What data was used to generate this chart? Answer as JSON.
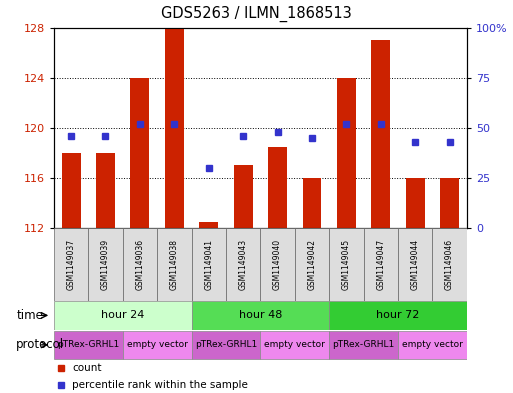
{
  "title": "GDS5263 / ILMN_1868513",
  "samples": [
    "GSM1149037",
    "GSM1149039",
    "GSM1149036",
    "GSM1149038",
    "GSM1149041",
    "GSM1149043",
    "GSM1149040",
    "GSM1149042",
    "GSM1149045",
    "GSM1149047",
    "GSM1149044",
    "GSM1149046"
  ],
  "counts": [
    118.0,
    118.0,
    124.0,
    128.0,
    112.5,
    117.0,
    118.5,
    116.0,
    124.0,
    127.0,
    116.0,
    116.0
  ],
  "percentiles": [
    46,
    46,
    52,
    52,
    30,
    46,
    48,
    45,
    52,
    52,
    43,
    43
  ],
  "ylim_left": [
    112,
    128
  ],
  "ylim_right": [
    0,
    100
  ],
  "yticks_left": [
    112,
    116,
    120,
    124,
    128
  ],
  "yticks_right": [
    0,
    25,
    50,
    75,
    100
  ],
  "ytick_right_labels": [
    "0",
    "25",
    "50",
    "75",
    "100%"
  ],
  "bar_color": "#CC2200",
  "dot_color": "#3333CC",
  "time_groups": [
    {
      "label": "hour 24",
      "start": 0,
      "end": 4,
      "color": "#CCFFCC"
    },
    {
      "label": "hour 48",
      "start": 4,
      "end": 8,
      "color": "#55DD55"
    },
    {
      "label": "hour 72",
      "start": 8,
      "end": 12,
      "color": "#33CC33"
    }
  ],
  "protocol_groups": [
    {
      "label": "pTRex-GRHL1",
      "start": 0,
      "end": 2,
      "color": "#CC66CC"
    },
    {
      "label": "empty vector",
      "start": 2,
      "end": 4,
      "color": "#EE88EE"
    },
    {
      "label": "pTRex-GRHL1",
      "start": 4,
      "end": 6,
      "color": "#CC66CC"
    },
    {
      "label": "empty vector",
      "start": 6,
      "end": 8,
      "color": "#EE88EE"
    },
    {
      "label": "pTRex-GRHL1",
      "start": 8,
      "end": 10,
      "color": "#CC66CC"
    },
    {
      "label": "empty vector",
      "start": 10,
      "end": 12,
      "color": "#EE88EE"
    }
  ],
  "legend_items": [
    {
      "label": "count",
      "color": "#CC2200"
    },
    {
      "label": "percentile rank within the sample",
      "color": "#3333CC"
    }
  ],
  "fig_width": 5.13,
  "fig_height": 3.93,
  "dpi": 100
}
